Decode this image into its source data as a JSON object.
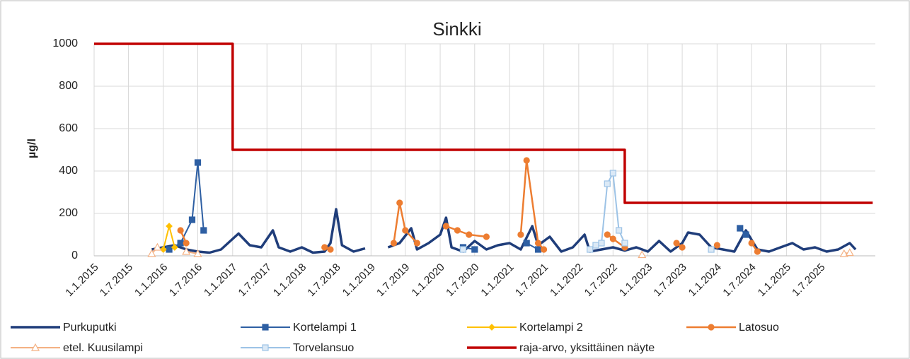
{
  "chart_data": {
    "type": "line",
    "title": "Sinkki",
    "y_label": "µg/l",
    "xlim": [
      "2015-01-01",
      "2026-04-15"
    ],
    "xticks": [
      {
        "value": "2015-01-01",
        "label": "1.1.2015"
      },
      {
        "value": "2015-07-01",
        "label": "1.7.2015"
      },
      {
        "value": "2016-01-01",
        "label": "1.1.2016"
      },
      {
        "value": "2016-07-01",
        "label": "1.7.2016"
      },
      {
        "value": "2017-01-01",
        "label": "1.1.2017"
      },
      {
        "value": "2017-07-01",
        "label": "1.7.2017"
      },
      {
        "value": "2018-01-01",
        "label": "1.1.2018"
      },
      {
        "value": "2018-07-01",
        "label": "1.7.2018"
      },
      {
        "value": "2019-01-01",
        "label": "1.1.2019"
      },
      {
        "value": "2019-07-01",
        "label": "1.7.2019"
      },
      {
        "value": "2020-01-01",
        "label": "1.1.2020"
      },
      {
        "value": "2020-07-01",
        "label": "1.7.2020"
      },
      {
        "value": "2021-01-01",
        "label": "1.1.2021"
      },
      {
        "value": "2021-07-01",
        "label": "1.7.2021"
      },
      {
        "value": "2022-01-01",
        "label": "1.1.2022"
      },
      {
        "value": "2022-07-01",
        "label": "1.7.2022"
      },
      {
        "value": "2023-01-01",
        "label": "1.1.2023"
      },
      {
        "value": "2023-07-01",
        "label": "1.7.2023"
      },
      {
        "value": "2024-01-01",
        "label": "1.1.2024"
      },
      {
        "value": "2024-07-01",
        "label": "1.7.2024"
      },
      {
        "value": "2025-01-01",
        "label": "1.1.2025"
      },
      {
        "value": "2025-07-01",
        "label": "1.7.2025"
      }
    ],
    "ylim": [
      0,
      1000
    ],
    "yticks": [
      0,
      200,
      400,
      600,
      800,
      1000
    ],
    "grid": true,
    "legend": "bottom",
    "series": [
      {
        "name": "Purkuputki",
        "color": "#1f3d7a",
        "marker": "none",
        "width": 3.5,
        "x": [
          "2015-11",
          "2016-01",
          "2016-03",
          "2016-05",
          "2016-07",
          "2016-09",
          "2016-11",
          "2017-01",
          "2017-02",
          "2017-04",
          "2017-06",
          "2017-08",
          "2017-09",
          "2017-11",
          "2018-01",
          "2018-03",
          "2018-05",
          "2018-06",
          "2018-07",
          "2018-08",
          "2018-10",
          "2018-12",
          "2019-02",
          "2019-04",
          "2019-06",
          "2019-08",
          "2019-09",
          "2019-11",
          "2020-01",
          "2020-02",
          "2020-03",
          "2020-05",
          "2020-07",
          "2020-09",
          "2020-11",
          "2021-01",
          "2021-03",
          "2021-05",
          "2021-06",
          "2021-08",
          "2021-10",
          "2021-12",
          "2022-02",
          "2022-03",
          "2022-05",
          "2022-07",
          "2022-09",
          "2022-11",
          "2023-01",
          "2023-03",
          "2023-05",
          "2023-07",
          "2023-08",
          "2023-10",
          "2023-12",
          "2024-02",
          "2024-04",
          "2024-06",
          "2024-08",
          "2024-10",
          "2024-12",
          "2025-02",
          "2025-04",
          "2025-06",
          "2025-08",
          "2025-10",
          "2025-12",
          "2026-01"
        ],
        "values": [
          30,
          40,
          50,
          30,
          20,
          15,
          30,
          80,
          105,
          50,
          40,
          120,
          40,
          20,
          40,
          15,
          20,
          60,
          220,
          50,
          20,
          35,
          null,
          40,
          60,
          130,
          30,
          60,
          100,
          180,
          40,
          20,
          70,
          30,
          50,
          60,
          30,
          140,
          50,
          90,
          20,
          40,
          100,
          20,
          30,
          40,
          25,
          40,
          20,
          70,
          20,
          60,
          110,
          100,
          40,
          30,
          20,
          120,
          30,
          20,
          40,
          60,
          30,
          40,
          20,
          30,
          60,
          30
        ]
      },
      {
        "name": "Kortelampi 1",
        "color": "#2e5fa3",
        "marker": "square",
        "width": 2,
        "x": [
          "2016-02",
          "2016-04",
          "2016-06",
          "2016-07",
          "2016-08",
          "2016-09",
          "2020-05",
          "2020-07",
          "2020-09",
          "2021-04",
          "2021-06",
          "2021-08",
          "2024-05",
          "2024-06"
        ],
        "values": [
          30,
          60,
          170,
          440,
          120,
          null,
          40,
          30,
          null,
          60,
          30,
          null,
          130,
          100
        ]
      },
      {
        "name": "Kortelampi 2",
        "color": "#ffc000",
        "marker": "diamond",
        "width": 2,
        "x": [
          "2016-01",
          "2016-02",
          "2016-03"
        ],
        "values": [
          30,
          140,
          40
        ]
      },
      {
        "name": "Latosuo",
        "color": "#ed7d31",
        "marker": "circle",
        "width": 2.5,
        "x": [
          "2016-04",
          "2016-05",
          "2016-06",
          "2018-05",
          "2018-06",
          "2018-08",
          "2019-05",
          "2019-06",
          "2019-07",
          "2019-09",
          "2019-11",
          "2020-02",
          "2020-04",
          "2020-06",
          "2020-09",
          "2020-12",
          "2021-03",
          "2021-04",
          "2021-06",
          "2021-07",
          "2021-09",
          "2022-06",
          "2022-07",
          "2022-09",
          "2022-11",
          "2023-06",
          "2023-07",
          "2023-09",
          "2024-01",
          "2024-03",
          "2024-07",
          "2024-08"
        ],
        "values": [
          120,
          60,
          null,
          40,
          30,
          null,
          60,
          250,
          120,
          60,
          null,
          140,
          120,
          100,
          90,
          null,
          100,
          450,
          60,
          30,
          null,
          100,
          80,
          40,
          null,
          60,
          40,
          null,
          50,
          null,
          60,
          20
        ]
      },
      {
        "name": "etel. Kuusilampi",
        "color": "#f4b183",
        "marker": "triangle",
        "width": 2,
        "x": [
          "2015-11",
          "2015-12",
          "2016-02",
          "2016-05",
          "2016-07",
          "2016-09",
          "2022-12",
          "2023-02",
          "2025-11",
          "2025-12"
        ],
        "values": [
          10,
          40,
          null,
          20,
          10,
          null,
          5,
          null,
          10,
          15
        ]
      },
      {
        "name": "Torvelansuo",
        "color": "#9dc3e6",
        "marker": "square",
        "width": 2,
        "x": [
          "2020-05",
          "2020-07",
          "2022-03",
          "2022-04",
          "2022-05",
          "2022-06",
          "2022-07",
          "2022-08",
          "2022-09",
          "2023-06",
          "2023-12"
        ],
        "values": [
          30,
          null,
          30,
          50,
          60,
          340,
          390,
          120,
          60,
          null,
          30
        ]
      },
      {
        "name": "raja-arvo, yksittäinen näyte",
        "color": "#c00000",
        "marker": "none",
        "width": 3.5,
        "x": [
          "2015-01",
          "2017-01",
          "2017-01",
          "2022-09",
          "2022-09",
          "2026-04"
        ],
        "values": [
          1000,
          1000,
          500,
          500,
          250,
          250
        ]
      }
    ]
  }
}
